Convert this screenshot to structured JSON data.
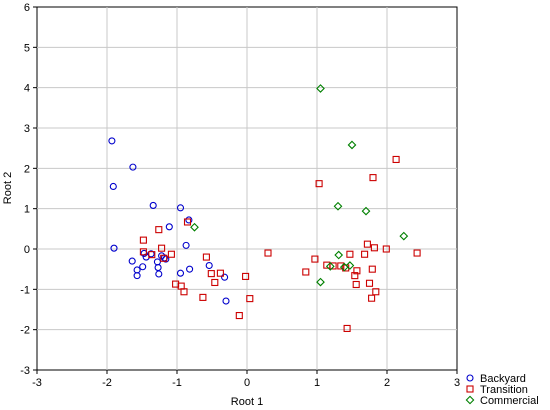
{
  "chart_data": {
    "type": "scatter",
    "title": "",
    "xlabel": "Root 1",
    "ylabel": "Root 2",
    "xlim": [
      -3,
      3
    ],
    "ylim": [
      -3,
      6
    ],
    "xticks": [
      "-3",
      "-2",
      "-1",
      "0",
      "1",
      "2",
      "3"
    ],
    "yticks": [
      "-3",
      "-2",
      "-1",
      "0",
      "1",
      "2",
      "3",
      "4",
      "5",
      "6"
    ],
    "grid": true,
    "legend_position": "bottom-right",
    "series": [
      {
        "name": "Backyard",
        "marker": "circle",
        "color": "#0000cc",
        "points": [
          [
            -1.93,
            2.68
          ],
          [
            -1.91,
            1.55
          ],
          [
            -1.63,
            2.03
          ],
          [
            -1.9,
            0.02
          ],
          [
            -1.64,
            -0.3
          ],
          [
            -1.57,
            -0.52
          ],
          [
            -1.57,
            -0.66
          ],
          [
            -1.49,
            -0.44
          ],
          [
            -1.47,
            -0.11
          ],
          [
            -1.44,
            -0.2
          ],
          [
            -1.37,
            -0.12
          ],
          [
            -1.34,
            1.08
          ],
          [
            -1.28,
            -0.32
          ],
          [
            -1.27,
            -0.46
          ],
          [
            -1.26,
            -0.62
          ],
          [
            -1.22,
            -0.17
          ],
          [
            -1.18,
            -0.22
          ],
          [
            -1.16,
            -0.25
          ],
          [
            -1.11,
            0.55
          ],
          [
            -0.95,
            1.02
          ],
          [
            -0.95,
            -0.6
          ],
          [
            -0.87,
            0.09
          ],
          [
            -0.83,
            0.72
          ],
          [
            -0.82,
            -0.5
          ],
          [
            -0.54,
            -0.41
          ],
          [
            -0.32,
            -0.7
          ],
          [
            -0.3,
            -1.29
          ]
        ]
      },
      {
        "name": "Transition",
        "marker": "square",
        "color": "#cc0000",
        "points": [
          [
            -1.48,
            0.22
          ],
          [
            -1.48,
            -0.07
          ],
          [
            -1.36,
            -0.14
          ],
          [
            -1.26,
            0.48
          ],
          [
            -1.22,
            0.02
          ],
          [
            -1.19,
            -0.23
          ],
          [
            -1.08,
            -0.13
          ],
          [
            -1.02,
            -0.87
          ],
          [
            -0.94,
            -0.92
          ],
          [
            -0.9,
            -1.06
          ],
          [
            -0.85,
            0.67
          ],
          [
            -0.58,
            -0.2
          ],
          [
            -0.51,
            -0.61
          ],
          [
            -0.46,
            -0.83
          ],
          [
            -0.63,
            -1.2
          ],
          [
            -0.38,
            -0.6
          ],
          [
            -0.11,
            -1.65
          ],
          [
            -0.02,
            -0.68
          ],
          [
            0.04,
            -1.23
          ],
          [
            0.3,
            -0.1
          ],
          [
            0.84,
            -0.57
          ],
          [
            0.97,
            -0.25
          ],
          [
            1.03,
            1.62
          ],
          [
            1.14,
            -0.4
          ],
          [
            1.23,
            -0.42
          ],
          [
            1.34,
            -0.42
          ],
          [
            1.41,
            -0.47
          ],
          [
            1.43,
            -1.97
          ],
          [
            1.47,
            -0.13
          ],
          [
            1.54,
            -0.66
          ],
          [
            1.56,
            -0.88
          ],
          [
            1.57,
            -0.54
          ],
          [
            1.68,
            -0.13
          ],
          [
            1.72,
            0.12
          ],
          [
            1.75,
            -0.85
          ],
          [
            1.79,
            -0.5
          ],
          [
            1.8,
            1.77
          ],
          [
            1.82,
            0.03
          ],
          [
            1.84,
            -1.06
          ],
          [
            1.78,
            -1.22
          ],
          [
            1.99,
            0.0
          ],
          [
            2.13,
            2.22
          ],
          [
            2.43,
            -0.1
          ]
        ]
      },
      {
        "name": "Commercial",
        "marker": "diamond",
        "color": "#008000",
        "points": [
          [
            1.05,
            3.98
          ],
          [
            1.5,
            2.58
          ],
          [
            1.3,
            1.06
          ],
          [
            1.7,
            0.94
          ],
          [
            2.24,
            0.32
          ],
          [
            -0.75,
            0.54
          ],
          [
            1.05,
            -0.82
          ],
          [
            1.19,
            -0.43
          ],
          [
            1.31,
            -0.15
          ],
          [
            1.39,
            -0.45
          ],
          [
            1.47,
            -0.41
          ]
        ]
      }
    ]
  }
}
